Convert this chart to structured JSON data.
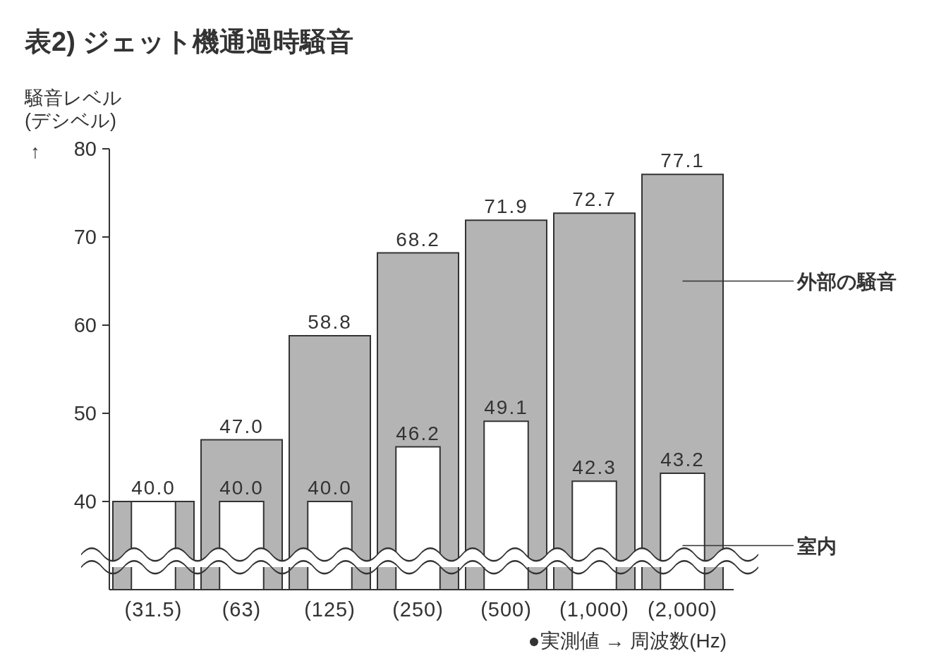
{
  "chart_data": {
    "type": "bar",
    "title": "表2) ジェット機通過時騒音",
    "ylabel": "騒音レベル\n(デシベル)\n↑",
    "xlabel": "●実測値 → 周波数(Hz)",
    "categories": [
      "(31.5)",
      "(63)",
      "(125)",
      "(250)",
      "(500)",
      "(1,000)",
      "(2,000)"
    ],
    "series": [
      {
        "name": "外部の騒音",
        "color": "#b4b4b4",
        "values": [
          40.0,
          47.0,
          58.8,
          68.2,
          71.9,
          72.7,
          77.1
        ],
        "value_labels": [
          "40.0",
          "47.0",
          "58.8",
          "68.2",
          "71.9",
          "72.7",
          "77.1"
        ]
      },
      {
        "name": "室内",
        "color": "#ffffff",
        "values": [
          40.0,
          40.0,
          40.0,
          46.2,
          49.1,
          42.3,
          43.2
        ],
        "value_labels": [
          null,
          "40.0",
          "40.0",
          "46.2",
          "49.1",
          "42.3",
          "43.2"
        ]
      }
    ],
    "ylim": [
      30,
      80
    ],
    "yticks": [
      40,
      50,
      60,
      70,
      80
    ],
    "grid": false
  }
}
